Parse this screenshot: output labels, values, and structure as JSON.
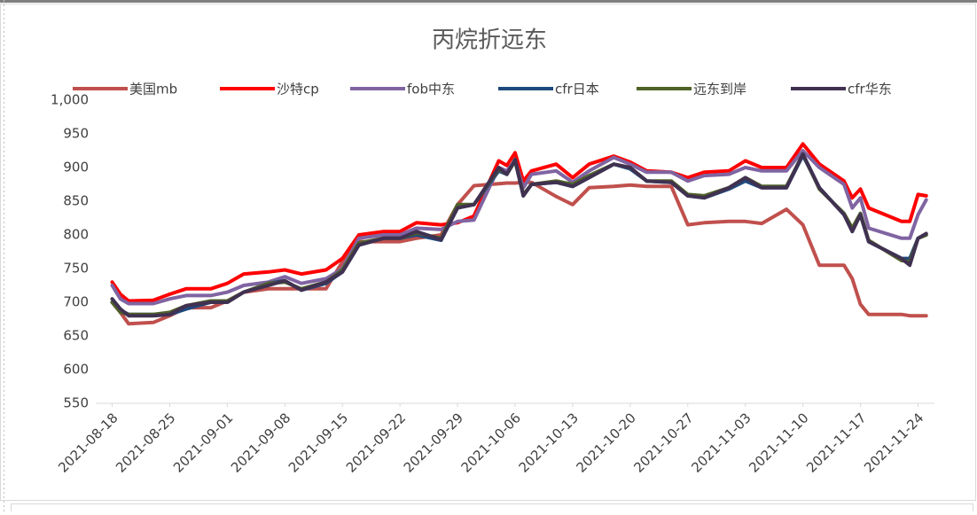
{
  "chart_data": {
    "type": "line",
    "title": "丙烷折远东",
    "x": [
      "2021-08-18",
      "2021-08-19",
      "2021-08-20",
      "2021-08-23",
      "2021-08-25",
      "2021-08-27",
      "2021-08-30",
      "2021-09-01",
      "2021-09-03",
      "2021-09-06",
      "2021-09-08",
      "2021-09-10",
      "2021-09-13",
      "2021-09-15",
      "2021-09-17",
      "2021-09-20",
      "2021-09-22",
      "2021-09-24",
      "2021-09-27",
      "2021-09-29",
      "2021-10-01",
      "2021-10-04",
      "2021-10-05",
      "2021-10-06",
      "2021-10-07",
      "2021-10-08",
      "2021-10-11",
      "2021-10-13",
      "2021-10-15",
      "2021-10-18",
      "2021-10-20",
      "2021-10-22",
      "2021-10-25",
      "2021-10-27",
      "2021-10-29",
      "2021-11-01",
      "2021-11-03",
      "2021-11-05",
      "2021-11-08",
      "2021-11-10",
      "2021-11-12",
      "2021-11-15",
      "2021-11-16",
      "2021-11-17",
      "2021-11-18",
      "2021-11-22",
      "2021-11-23",
      "2021-11-24",
      "2021-11-25"
    ],
    "series": [
      {
        "name": "美国mb",
        "color": "#c0504d",
        "values": [
          700,
          685,
          668,
          670,
          680,
          692,
          692,
          702,
          715,
          720,
          720,
          720,
          720,
          760,
          790,
          790,
          790,
          795,
          800,
          845,
          873,
          876,
          877,
          877,
          878,
          878,
          857,
          845,
          870,
          872,
          874,
          872,
          872,
          815,
          818,
          820,
          820,
          817,
          838,
          815,
          755,
          755,
          735,
          697,
          682,
          682,
          680,
          680,
          680
        ]
      },
      {
        "name": "沙特cp",
        "color": "#ff0000",
        "values": [
          730,
          712,
          702,
          703,
          712,
          720,
          720,
          728,
          742,
          745,
          748,
          742,
          748,
          765,
          800,
          805,
          805,
          818,
          815,
          818,
          828,
          910,
          903,
          922,
          880,
          895,
          905,
          885,
          905,
          917,
          908,
          895,
          893,
          885,
          893,
          895,
          910,
          900,
          900,
          935,
          905,
          880,
          855,
          868,
          840,
          820,
          820,
          860,
          858
        ]
      },
      {
        "name": "fob中东",
        "color": "#8064a2",
        "values": [
          725,
          705,
          698,
          698,
          705,
          710,
          710,
          715,
          725,
          730,
          738,
          728,
          735,
          750,
          795,
          800,
          800,
          810,
          808,
          820,
          822,
          900,
          895,
          910,
          870,
          890,
          895,
          878,
          895,
          915,
          905,
          893,
          893,
          880,
          888,
          890,
          900,
          895,
          895,
          925,
          900,
          875,
          840,
          855,
          810,
          795,
          795,
          830,
          852
        ]
      },
      {
        "name": "cfr日本",
        "color": "#1f497d",
        "values": [
          700,
          688,
          682,
          682,
          682,
          690,
          700,
          700,
          715,
          728,
          732,
          718,
          728,
          745,
          785,
          795,
          795,
          800,
          792,
          840,
          845,
          895,
          890,
          910,
          858,
          875,
          878,
          872,
          885,
          905,
          898,
          880,
          878,
          858,
          855,
          868,
          880,
          870,
          870,
          918,
          870,
          830,
          808,
          830,
          790,
          765,
          765,
          795,
          800
        ]
      },
      {
        "name": "远东到岸",
        "color": "#4f6228",
        "values": [
          700,
          685,
          682,
          682,
          685,
          695,
          702,
          702,
          715,
          728,
          730,
          720,
          730,
          748,
          788,
          795,
          795,
          803,
          795,
          845,
          845,
          898,
          890,
          910,
          860,
          875,
          880,
          875,
          888,
          905,
          900,
          880,
          880,
          860,
          858,
          870,
          885,
          872,
          872,
          920,
          868,
          832,
          810,
          832,
          792,
          762,
          760,
          795,
          800
        ]
      },
      {
        "name": "cfr华东",
        "color": "#403151",
        "values": [
          705,
          690,
          680,
          680,
          682,
          695,
          700,
          700,
          715,
          725,
          732,
          718,
          730,
          745,
          785,
          795,
          795,
          805,
          793,
          840,
          845,
          900,
          890,
          912,
          858,
          875,
          878,
          872,
          885,
          905,
          900,
          880,
          878,
          858,
          855,
          870,
          885,
          870,
          870,
          920,
          870,
          830,
          805,
          830,
          790,
          765,
          755,
          795,
          802
        ]
      }
    ],
    "xlim": [
      "2021-08-16",
      "2021-11-26"
    ],
    "xticks": [
      "2021-08-18",
      "2021-08-25",
      "2021-09-01",
      "2021-09-08",
      "2021-09-15",
      "2021-09-22",
      "2021-09-29",
      "2021-10-06",
      "2021-10-13",
      "2021-10-20",
      "2021-10-27",
      "2021-11-03",
      "2021-11-10",
      "2021-11-17",
      "2021-11-24"
    ],
    "ylim": [
      550,
      1000
    ],
    "yticks": [
      550,
      600,
      650,
      700,
      750,
      800,
      850,
      900,
      950,
      {
        "value": 1000,
        "label": "1,000"
      }
    ],
    "grid": false,
    "legend": "top"
  }
}
